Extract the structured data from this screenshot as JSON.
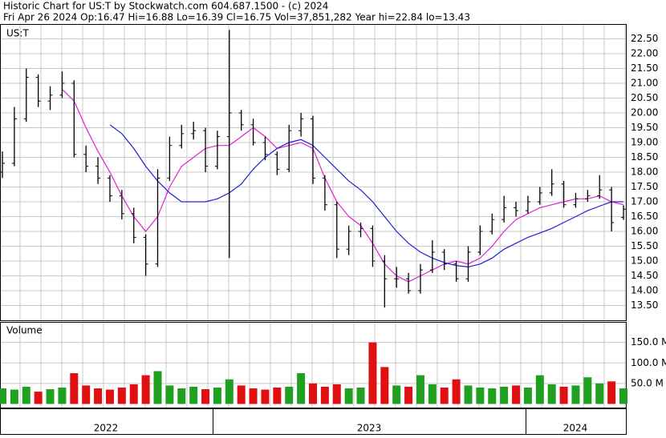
{
  "chart_data": {
    "type": "ohlc",
    "title": "Historic Chart for US:T by Stockwatch.com 604.687.1500 - (c) 2024",
    "subtitle": "Fri Apr 26 2024  Op:16.47  Hi=16.88  Lo=16.39  Cl=16.75  Vol=37,851,282  Year hi=22.84  lo=13.43",
    "symbol": "US:T",
    "x_labels": [
      "2022",
      "2023",
      "2024"
    ],
    "open": [
      18.0,
      18.3,
      19.8,
      21.2,
      20.4,
      20.6,
      21.0,
      18.6,
      18.2,
      17.8,
      17.2,
      16.6,
      15.8,
      14.9,
      17.8,
      18.9,
      19.3,
      19.4,
      18.2,
      19.2,
      20.0,
      19.6,
      19.0,
      18.6,
      18.1,
      19.4,
      19.8,
      17.8,
      16.9,
      15.4,
      16.0,
      16.1,
      15.0,
      14.4,
      14.4,
      14.0,
      14.7,
      15.3,
      14.9,
      14.4,
      15.3,
      16.0,
      16.4,
      16.8,
      16.7,
      17.0,
      17.3,
      17.6,
      16.9,
      17.1,
      17.2,
      17.4,
      16.47
    ],
    "high": [
      18.7,
      20.2,
      21.5,
      21.3,
      20.9,
      21.4,
      21.1,
      18.9,
      18.5,
      17.9,
      17.4,
      16.8,
      15.9,
      18.1,
      19.2,
      19.6,
      19.7,
      19.5,
      19.4,
      22.8,
      20.1,
      19.8,
      19.2,
      18.7,
      19.6,
      20.0,
      19.9,
      17.9,
      17.0,
      16.2,
      16.3,
      16.2,
      15.2,
      14.8,
      14.6,
      14.9,
      15.7,
      15.4,
      15.0,
      15.5,
      16.2,
      16.6,
      17.2,
      17.0,
      17.2,
      17.5,
      18.1,
      17.7,
      17.3,
      17.4,
      17.9,
      17.5,
      16.88
    ],
    "low": [
      17.8,
      18.2,
      19.7,
      20.2,
      20.1,
      20.5,
      18.5,
      18.0,
      17.6,
      17.0,
      16.4,
      15.6,
      14.5,
      14.8,
      17.7,
      18.8,
      19.1,
      18.0,
      18.1,
      15.1,
      19.4,
      18.9,
      18.4,
      17.9,
      18.0,
      19.2,
      17.6,
      16.7,
      15.1,
      15.2,
      15.8,
      14.8,
      13.43,
      14.1,
      13.9,
      13.9,
      14.6,
      14.7,
      14.3,
      14.3,
      15.2,
      15.9,
      16.3,
      16.5,
      16.6,
      16.9,
      17.2,
      16.8,
      16.8,
      17.0,
      17.1,
      16.0,
      16.39
    ],
    "close": [
      18.3,
      19.8,
      21.2,
      20.4,
      20.6,
      21.0,
      18.6,
      18.2,
      17.8,
      17.2,
      16.6,
      15.8,
      14.9,
      17.8,
      18.9,
      19.3,
      19.4,
      18.2,
      19.2,
      20.0,
      19.6,
      19.0,
      18.6,
      18.1,
      19.4,
      19.8,
      17.8,
      16.9,
      15.4,
      16.0,
      16.1,
      15.0,
      14.4,
      14.4,
      14.0,
      14.7,
      15.3,
      14.9,
      14.4,
      15.3,
      16.0,
      16.4,
      16.8,
      16.7,
      17.0,
      17.3,
      17.6,
      16.9,
      17.1,
      17.2,
      17.4,
      16.3,
      16.75
    ],
    "series": [
      {
        "color": "#e020d0",
        "values": [
          null,
          null,
          null,
          null,
          null,
          20.8,
          20.4,
          19.5,
          18.7,
          18.0,
          17.2,
          16.5,
          16.0,
          16.5,
          17.5,
          18.2,
          18.5,
          18.8,
          18.9,
          18.9,
          19.2,
          19.5,
          19.2,
          18.8,
          18.9,
          19.0,
          18.8,
          17.8,
          17.0,
          16.5,
          16.2,
          15.6,
          14.9,
          14.5,
          14.3,
          14.5,
          14.7,
          14.9,
          15.0,
          14.9,
          15.1,
          15.5,
          16.0,
          16.4,
          16.6,
          16.8,
          16.9,
          17.0,
          17.1,
          17.1,
          17.2,
          17.0,
          16.9
        ]
      },
      {
        "color": "#2020d0",
        "values": [
          null,
          null,
          null,
          null,
          null,
          null,
          null,
          null,
          null,
          19.6,
          19.3,
          18.8,
          18.2,
          17.7,
          17.3,
          17.0,
          17.0,
          17.0,
          17.1,
          17.3,
          17.6,
          18.1,
          18.5,
          18.8,
          19.0,
          19.1,
          18.9,
          18.5,
          18.1,
          17.7,
          17.4,
          17.0,
          16.5,
          16.0,
          15.6,
          15.3,
          15.1,
          14.95,
          14.85,
          14.8,
          14.9,
          15.1,
          15.4,
          15.6,
          15.8,
          15.95,
          16.1,
          16.3,
          16.5,
          16.7,
          16.85,
          17.0,
          17.0
        ]
      }
    ],
    "ylim": [
      13,
      23
    ],
    "yticks": [
      {
        "value": 13.5,
        "label": "13.50"
      },
      {
        "value": 14,
        "label": "14.00"
      },
      {
        "value": 14.5,
        "label": "14.50"
      },
      {
        "value": 15,
        "label": "15.00"
      },
      {
        "value": 15.5,
        "label": "15.50"
      },
      {
        "value": 16,
        "label": "16.00"
      },
      {
        "value": 16.5,
        "label": "16.50"
      },
      {
        "value": 17,
        "label": "17.00"
      },
      {
        "value": 17.5,
        "label": "17.50"
      },
      {
        "value": 18,
        "label": "18.00"
      },
      {
        "value": 18.5,
        "label": "18.50"
      },
      {
        "value": 19,
        "label": "19.00"
      },
      {
        "value": 19.5,
        "label": "19.50"
      },
      {
        "value": 20,
        "label": "20.00"
      },
      {
        "value": 20.5,
        "label": "20.50"
      },
      {
        "value": 21,
        "label": "21.00"
      },
      {
        "value": 21.5,
        "label": "21.50"
      },
      {
        "value": 22,
        "label": "22.00"
      },
      {
        "value": 22.5,
        "label": "22.50"
      }
    ],
    "grid": true,
    "volume": {
      "title": "Volume",
      "up_color": "#20a020",
      "down_color": "#e01010",
      "values": [
        38,
        35,
        42,
        30,
        36,
        40,
        75,
        45,
        38,
        35,
        40,
        48,
        70,
        80,
        45,
        38,
        42,
        36,
        40,
        60,
        45,
        38,
        35,
        40,
        42,
        75,
        50,
        42,
        48,
        38,
        40,
        150,
        90,
        45,
        42,
        70,
        48,
        40,
        60,
        45,
        40,
        38,
        42,
        45,
        40,
        70,
        48,
        42,
        45,
        65,
        50,
        55,
        38
      ],
      "ylim": [
        0,
        200
      ],
      "yticks": [
        {
          "value": 50,
          "label": "50.0 M"
        },
        {
          "value": 100,
          "label": "100.0 M"
        },
        {
          "value": 150,
          "label": "150.0 M"
        }
      ]
    }
  }
}
